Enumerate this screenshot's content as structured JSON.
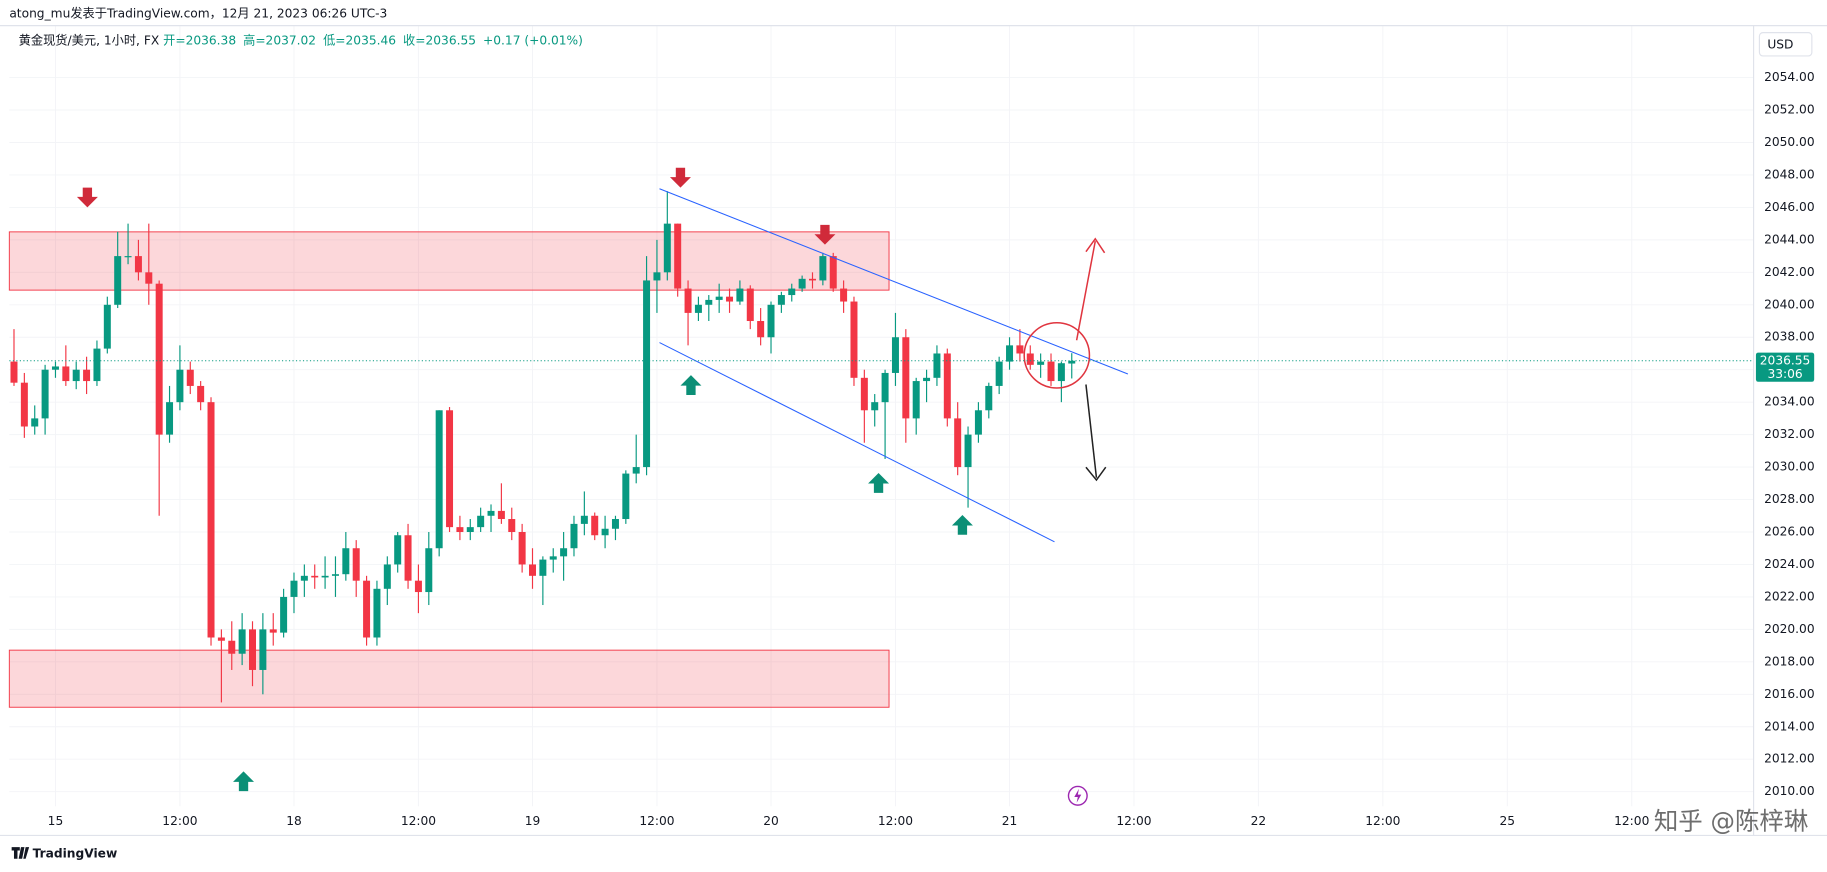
{
  "chart_data": {
    "type": "candlestick",
    "header": "atong_mu发表于TradingView.com，12月 21, 2023 06:26 UTC-3",
    "symbol": "黄金现货/美元, 1小时, FX",
    "legend_values": [
      "开=2036.38",
      "高=2037.02",
      "低=2035.46",
      "收=2036.55",
      "+0.17 (+0.01%)"
    ],
    "currency": "USD",
    "countdown": "33:06",
    "footer_brand": "TradingView",
    "watermark": "知乎 @陈梓琳",
    "up_color": "#089981",
    "down_color": "#f23645",
    "grid": true,
    "ohlc": [
      [
        2036.5,
        2038.5,
        2035,
        2035.2
      ],
      [
        2035.2,
        2035.8,
        2031.8,
        2032.5
      ],
      [
        2032.5,
        2033.8,
        2032,
        2033
      ],
      [
        2033,
        2036.3,
        2032,
        2036
      ],
      [
        2036,
        2036.5,
        2035.5,
        2036.2
      ],
      [
        2036.2,
        2037.5,
        2035,
        2035.3
      ],
      [
        2035.3,
        2036.5,
        2034.8,
        2036
      ],
      [
        2036,
        2036.8,
        2034.5,
        2035.3
      ],
      [
        2035.3,
        2037.8,
        2035,
        2037.3
      ],
      [
        2037.3,
        2040.5,
        2037,
        2040
      ],
      [
        2040,
        2044.5,
        2039.8,
        2043
      ],
      [
        2043,
        2045,
        2042.5,
        2043
      ],
      [
        2043,
        2044,
        2041.5,
        2042
      ],
      [
        2042,
        2045,
        2040,
        2041.3
      ],
      [
        2041.3,
        2041.5,
        2027,
        2032
      ],
      [
        2032,
        2035,
        2031.5,
        2034
      ],
      [
        2034,
        2037.5,
        2033.5,
        2036
      ],
      [
        2036,
        2036.5,
        2034.5,
        2035
      ],
      [
        2035,
        2035.3,
        2033.5,
        2034
      ],
      [
        2034,
        2034.3,
        2019,
        2019.5
      ],
      [
        2019.5,
        2020,
        2015.5,
        2019.3
      ],
      [
        2019.3,
        2020.5,
        2017.5,
        2018.5
      ],
      [
        2018.5,
        2021,
        2017.8,
        2020
      ],
      [
        2020,
        2020.5,
        2016.5,
        2017.5
      ],
      [
        2017.5,
        2021,
        2016,
        2020
      ],
      [
        2020,
        2021,
        2019,
        2019.8
      ],
      [
        2019.8,
        2022.5,
        2019.5,
        2022
      ],
      [
        2022,
        2023.5,
        2021,
        2023
      ],
      [
        2023,
        2024,
        2022,
        2023.3
      ],
      [
        2023.3,
        2024,
        2022.5,
        2023.2
      ],
      [
        2023.2,
        2024.5,
        2022.5,
        2023.3
      ],
      [
        2023.3,
        2024.5,
        2022,
        2023.4
      ],
      [
        2023.4,
        2026,
        2023,
        2025
      ],
      [
        2025,
        2025.5,
        2022,
        2023
      ],
      [
        2023,
        2023.3,
        2019,
        2019.5
      ],
      [
        2019.5,
        2023,
        2019,
        2022.5
      ],
      [
        2022.5,
        2024.5,
        2021.5,
        2024
      ],
      [
        2024,
        2026,
        2023.5,
        2025.8
      ],
      [
        2025.8,
        2026.5,
        2022.5,
        2023
      ],
      [
        2023,
        2024,
        2021,
        2022.3
      ],
      [
        2022.3,
        2026,
        2021.5,
        2025
      ],
      [
        2025,
        2033.5,
        2024.5,
        2033.5
      ],
      [
        2033.5,
        2033.7,
        2026,
        2026.3
      ],
      [
        2026.3,
        2027,
        2025.5,
        2026
      ],
      [
        2026,
        2026.8,
        2025.5,
        2026.3
      ],
      [
        2026.3,
        2027.5,
        2026,
        2027
      ],
      [
        2027,
        2027.7,
        2026,
        2027.3
      ],
      [
        2027.3,
        2029,
        2026.5,
        2026.8
      ],
      [
        2026.8,
        2027.5,
        2025.5,
        2026
      ],
      [
        2026,
        2026.5,
        2023.5,
        2024
      ],
      [
        2024,
        2025,
        2022.5,
        2023.3
      ],
      [
        2023.3,
        2024.5,
        2021.5,
        2024.3
      ],
      [
        2024.3,
        2025,
        2023.5,
        2024.5
      ],
      [
        2024.5,
        2026,
        2023,
        2025
      ],
      [
        2025,
        2027,
        2024.5,
        2026.5
      ],
      [
        2026.5,
        2028.5,
        2025.8,
        2027
      ],
      [
        2027,
        2027.2,
        2025.5,
        2025.8
      ],
      [
        2025.8,
        2027,
        2025,
        2026.2
      ],
      [
        2026.2,
        2027,
        2025.5,
        2026.8
      ],
      [
        2026.8,
        2029.8,
        2026.5,
        2029.6
      ],
      [
        2029.6,
        2032,
        2029,
        2030
      ],
      [
        2030,
        2043,
        2029.5,
        2041.5
      ],
      [
        2041.5,
        2044,
        2039.5,
        2042
      ],
      [
        2042,
        2047,
        2041.5,
        2045
      ],
      [
        2045,
        2045,
        2040.5,
        2041
      ],
      [
        2041,
        2041.5,
        2037.5,
        2039.5
      ],
      [
        2039.5,
        2040.5,
        2039,
        2040
      ],
      [
        2040,
        2040.6,
        2039,
        2040.3
      ],
      [
        2040.3,
        2041.3,
        2039.5,
        2040.5
      ],
      [
        2040.5,
        2041,
        2039.5,
        2040.2
      ],
      [
        2040.2,
        2041.5,
        2040,
        2041
      ],
      [
        2041,
        2041.2,
        2038.5,
        2039
      ],
      [
        2039,
        2039.8,
        2037.5,
        2038
      ],
      [
        2038,
        2040.2,
        2037,
        2040
      ],
      [
        2040,
        2040.8,
        2039.5,
        2040.6
      ],
      [
        2040.6,
        2041.3,
        2040.2,
        2041
      ],
      [
        2041,
        2041.8,
        2040.8,
        2041.6
      ],
      [
        2041.6,
        2042,
        2041,
        2041.5
      ],
      [
        2041.5,
        2043.2,
        2041.2,
        2043
      ],
      [
        2043,
        2043.2,
        2040.8,
        2041
      ],
      [
        2041,
        2041.5,
        2039.5,
        2040.2
      ],
      [
        2040.2,
        2040.5,
        2035,
        2035.5
      ],
      [
        2035.5,
        2036,
        2031.5,
        2033.5
      ],
      [
        2033.5,
        2034.5,
        2032.5,
        2034
      ],
      [
        2034,
        2036,
        2030.5,
        2035.8
      ],
      [
        2035.8,
        2039.5,
        2035,
        2038
      ],
      [
        2038,
        2038.5,
        2031.5,
        2033
      ],
      [
        2033,
        2035.5,
        2032,
        2035.3
      ],
      [
        2035.3,
        2036,
        2034,
        2035.5
      ],
      [
        2035.5,
        2037.5,
        2035,
        2037
      ],
      [
        2037,
        2037.3,
        2032.5,
        2033
      ],
      [
        2033,
        2034,
        2029.5,
        2030
      ],
      [
        2030,
        2032.5,
        2027.5,
        2032
      ],
      [
        2032,
        2034,
        2031.5,
        2033.5
      ],
      [
        2033.5,
        2035.2,
        2033,
        2035
      ],
      [
        2035,
        2036.8,
        2034.5,
        2036.5
      ],
      [
        2036.5,
        2038,
        2036,
        2037.5
      ],
      [
        2037.5,
        2038.5,
        2036.5,
        2037
      ],
      [
        2037,
        2037.5,
        2036,
        2036.3
      ],
      [
        2036.3,
        2037,
        2035.5,
        2036.5
      ],
      [
        2036.5,
        2037,
        2035,
        2035.3
      ],
      [
        2035.3,
        2036.5,
        2034,
        2036.4
      ],
      [
        2036.38,
        2037.02,
        2035.46,
        2036.55
      ]
    ],
    "xlim": [
      -0.45,
      167.75
    ],
    "xticks": [
      {
        "value": 4,
        "label": "15"
      },
      {
        "value": 16,
        "label": "12:00"
      },
      {
        "value": 27,
        "label": "18"
      },
      {
        "value": 39,
        "label": "12:00"
      },
      {
        "value": 50,
        "label": "19"
      },
      {
        "value": 62,
        "label": "12:00"
      },
      {
        "value": 73,
        "label": "20"
      },
      {
        "value": 85,
        "label": "12:00"
      },
      {
        "value": 96,
        "label": "21"
      },
      {
        "value": 108,
        "label": "12:00"
      },
      {
        "value": 120,
        "label": "22"
      },
      {
        "value": 132,
        "label": "12:00"
      },
      {
        "value": 144,
        "label": "25"
      },
      {
        "value": 156,
        "label": "12:00"
      }
    ],
    "ylim": [
      2009.1,
      2057.2
    ],
    "yticks": [
      {
        "value": 2010,
        "label": "2010.00"
      },
      {
        "value": 2012,
        "label": "2012.00"
      },
      {
        "value": 2014,
        "label": "2014.00"
      },
      {
        "value": 2016,
        "label": "2016.00"
      },
      {
        "value": 2018,
        "label": "2018.00"
      },
      {
        "value": 2020,
        "label": "2020.00"
      },
      {
        "value": 2022,
        "label": "2022.00"
      },
      {
        "value": 2024,
        "label": "2024.00"
      },
      {
        "value": 2026,
        "label": "2026.00"
      },
      {
        "value": 2028,
        "label": "2028.00"
      },
      {
        "value": 2030,
        "label": "2030.00"
      },
      {
        "value": 2032,
        "label": "2032.00"
      },
      {
        "value": 2034,
        "label": "2034.00"
      },
      {
        "value": 2036,
        "label": "2036.00"
      },
      {
        "value": 2038,
        "label": "2038.00"
      },
      {
        "value": 2040,
        "label": "2040.00"
      },
      {
        "value": 2042,
        "label": "2042.00"
      },
      {
        "value": 2044,
        "label": "2044.00"
      },
      {
        "value": 2046,
        "label": "2046.00"
      },
      {
        "value": 2048,
        "label": "2048.00"
      },
      {
        "value": 2050,
        "label": "2050.00"
      },
      {
        "value": 2052,
        "label": "2052.00"
      },
      {
        "value": 2054,
        "label": "2054.00"
      }
    ]
  }
}
